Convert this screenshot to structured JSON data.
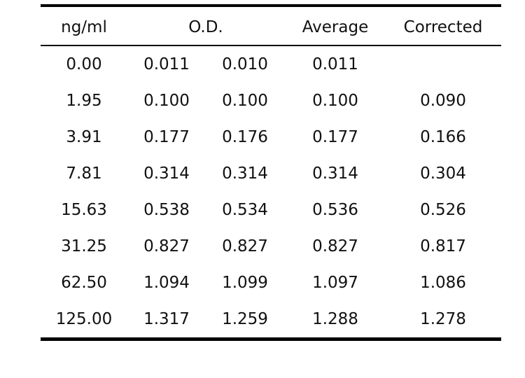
{
  "table": {
    "headers": {
      "concentration": "ng/ml",
      "od": "O.D.",
      "average": "Average",
      "corrected": "Corrected"
    },
    "rows": [
      {
        "conc": "0.00",
        "od1": "0.011",
        "od2": "0.010",
        "avg": "0.011",
        "corr": ""
      },
      {
        "conc": "1.95",
        "od1": "0.100",
        "od2": "0.100",
        "avg": "0.100",
        "corr": "0.090"
      },
      {
        "conc": "3.91",
        "od1": "0.177",
        "od2": "0.176",
        "avg": "0.177",
        "corr": "0.166"
      },
      {
        "conc": "7.81",
        "od1": "0.314",
        "od2": "0.314",
        "avg": "0.314",
        "corr": "0.304"
      },
      {
        "conc": "15.63",
        "od1": "0.538",
        "od2": "0.534",
        "avg": "0.536",
        "corr": "0.526"
      },
      {
        "conc": "31.25",
        "od1": "0.827",
        "od2": "0.827",
        "avg": "0.827",
        "corr": "0.817"
      },
      {
        "conc": "62.50",
        "od1": "1.094",
        "od2": "1.099",
        "avg": "1.097",
        "corr": "1.086"
      },
      {
        "conc": "125.00",
        "od1": "1.317",
        "od2": "1.259",
        "avg": "1.288",
        "corr": "1.278"
      }
    ]
  }
}
